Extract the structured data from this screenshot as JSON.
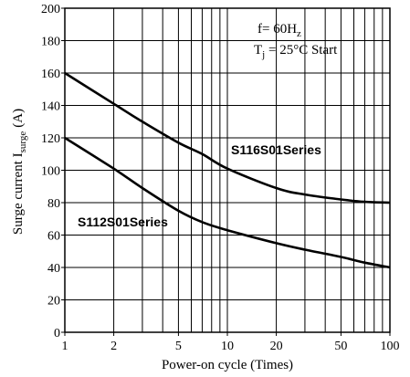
{
  "chart_data": {
    "type": "line",
    "xlabel": "Power-on cycle (Times)",
    "ylabel_main": "Surge current I",
    "ylabel_sub": "surge",
    "ylabel_unit": "(A)",
    "x_scale": "log",
    "xlim": [
      1,
      100
    ],
    "ylim": [
      0,
      200
    ],
    "x_ticks": [
      1,
      2,
      5,
      10,
      20,
      50,
      100
    ],
    "y_ticks": [
      0,
      20,
      40,
      60,
      80,
      100,
      120,
      140,
      160,
      180,
      200
    ],
    "grid": true,
    "annotation": {
      "line1": "f= 60H",
      "line1_sub": "z",
      "line2_main": "T",
      "line2_sub": "j",
      "line2_rest": " = 25°C Start"
    },
    "series": [
      {
        "name": "S116S01Series",
        "x": [
          1,
          2,
          3,
          5,
          7,
          10,
          20,
          30,
          50,
          70,
          100
        ],
        "y": [
          160,
          141,
          130,
          117,
          110,
          101,
          89,
          85,
          82,
          80.5,
          80
        ]
      },
      {
        "name": "S112S01Series",
        "x": [
          1,
          2,
          3,
          5,
          7,
          10,
          20,
          30,
          50,
          70,
          100
        ],
        "y": [
          120,
          101,
          89,
          75,
          68,
          63,
          55,
          51,
          46.5,
          43,
          40
        ]
      }
    ]
  }
}
